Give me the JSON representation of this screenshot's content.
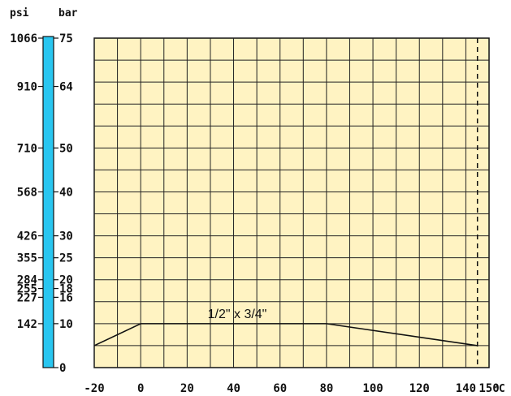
{
  "chart_data": {
    "type": "line",
    "title": "",
    "xlabel": "",
    "ylabel": "",
    "x_unit": "°C",
    "y_units": {
      "left": "psi",
      "right": "bar"
    },
    "xlim": [
      -20,
      150
    ],
    "ylim": [
      0,
      75
    ],
    "x_ticks": [
      -20,
      0,
      20,
      40,
      60,
      80,
      100,
      120,
      140,
      150
    ],
    "psi_ticks": [
      {
        "label": "1066",
        "bar": 75
      },
      {
        "label": "910",
        "bar": 64
      },
      {
        "label": "710",
        "bar": 50
      },
      {
        "label": "568",
        "bar": 40
      },
      {
        "label": "426",
        "bar": 30
      },
      {
        "label": "355",
        "bar": 25
      },
      {
        "label": "284",
        "bar": 20
      },
      {
        "label": "255",
        "bar": 18
      },
      {
        "label": "227",
        "bar": 16
      },
      {
        "label": "142",
        "bar": 10
      }
    ],
    "bar_ticks": [
      75,
      64,
      50,
      40,
      30,
      25,
      20,
      18,
      16,
      10,
      0
    ],
    "grid": true,
    "colors": {
      "plot_background": "#FFF3C2",
      "grid": "#222222",
      "scale_bar": "#29C6F0",
      "line": "#111111"
    },
    "reference_line": {
      "x": 145,
      "style": "dashed"
    },
    "series": [
      {
        "name": "1/2\" x 3/4\"",
        "x": [
          -20,
          0,
          80,
          145
        ],
        "y": [
          5,
          10,
          10,
          5
        ]
      }
    ]
  }
}
